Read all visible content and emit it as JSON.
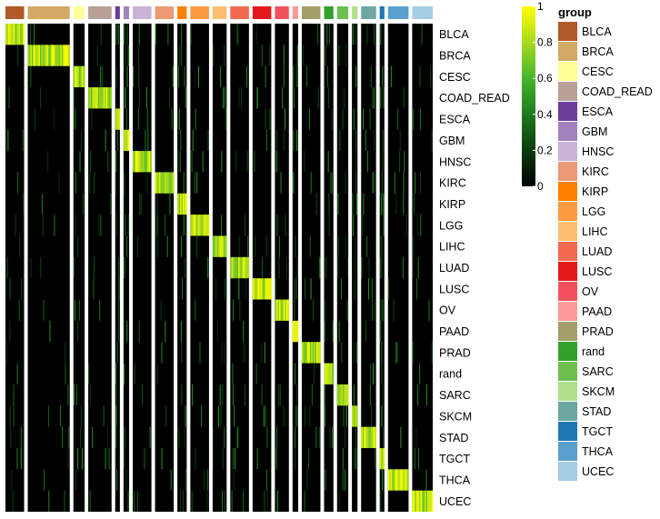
{
  "chart_data": {
    "type": "heatmap",
    "title": "",
    "description_free": true,
    "columns_annotation_title": "group",
    "groups": [
      {
        "name": "BLCA",
        "color": "#B15928",
        "samples": 20
      },
      {
        "name": "BRCA",
        "color": "#D2A965",
        "samples": 45
      },
      {
        "name": "CESC",
        "color": "#FFFF99",
        "samples": 12
      },
      {
        "name": "COAD_READ",
        "color": "#B9A198",
        "samples": 25
      },
      {
        "name": "ESCA",
        "color": "#6A3D9A",
        "samples": 5
      },
      {
        "name": "GBM",
        "color": "#A383BE",
        "samples": 6
      },
      {
        "name": "HNSC",
        "color": "#CAB2D6",
        "samples": 20
      },
      {
        "name": "KIRC",
        "color": "#EA9A76",
        "samples": 20
      },
      {
        "name": "KIRP",
        "color": "#FF7F00",
        "samples": 10
      },
      {
        "name": "LGG",
        "color": "#FB9A3F",
        "samples": 20
      },
      {
        "name": "LIHC",
        "color": "#FDBF6F",
        "samples": 15
      },
      {
        "name": "LUAD",
        "color": "#F1694F",
        "samples": 20
      },
      {
        "name": "LUSC",
        "color": "#E31A1C",
        "samples": 20
      },
      {
        "name": "OV",
        "color": "#F1525E",
        "samples": 15
      },
      {
        "name": "PAAD",
        "color": "#FB9A99",
        "samples": 6
      },
      {
        "name": "PRAD",
        "color": "#A39F6A",
        "samples": 20
      },
      {
        "name": "rand",
        "color": "#33A02C",
        "samples": 10
      },
      {
        "name": "SARC",
        "color": "#6DBF50",
        "samples": 12
      },
      {
        "name": "SKCM",
        "color": "#B2DF8A",
        "samples": 6
      },
      {
        "name": "STAD",
        "color": "#6CA7A0",
        "samples": 16
      },
      {
        "name": "TGCT",
        "color": "#1F78B4",
        "samples": 5
      },
      {
        "name": "THCA",
        "color": "#5AA0CE",
        "samples": 22
      },
      {
        "name": "UCEC",
        "color": "#A6CEE3",
        "samples": 22
      }
    ],
    "rows": [
      "BLCA",
      "BRCA",
      "CESC",
      "COAD_READ",
      "ESCA",
      "GBM",
      "HNSC",
      "KIRC",
      "KIRP",
      "LGG",
      "LIHC",
      "LUAD",
      "LUSC",
      "OV",
      "PAAD",
      "PRAD",
      "rand",
      "SARC",
      "SKCM",
      "STAD",
      "TGCT",
      "THCA",
      "UCEC"
    ],
    "diagonal_value": 1,
    "off_diagonal_value": 0,
    "colorbar": {
      "min": 0,
      "max": 1,
      "ticks": [
        {
          "value": 0,
          "label": "0"
        },
        {
          "value": 0.2,
          "label": "0.2"
        },
        {
          "value": 0.4,
          "label": "0.4"
        },
        {
          "value": 0.6,
          "label": "0.6"
        },
        {
          "value": 0.8,
          "label": "0.8"
        },
        {
          "value": 1,
          "label": "1"
        }
      ],
      "stops": [
        {
          "value": 0,
          "color": "#000000"
        },
        {
          "value": 0.2,
          "color": "#0B3A0B"
        },
        {
          "value": 0.4,
          "color": "#1E7A1E"
        },
        {
          "value": 0.6,
          "color": "#46B52C"
        },
        {
          "value": 0.8,
          "color": "#A8DA1E"
        },
        {
          "value": 1,
          "color": "#FFFF00"
        }
      ]
    },
    "legend": {
      "title": "group",
      "placement": "right"
    }
  }
}
